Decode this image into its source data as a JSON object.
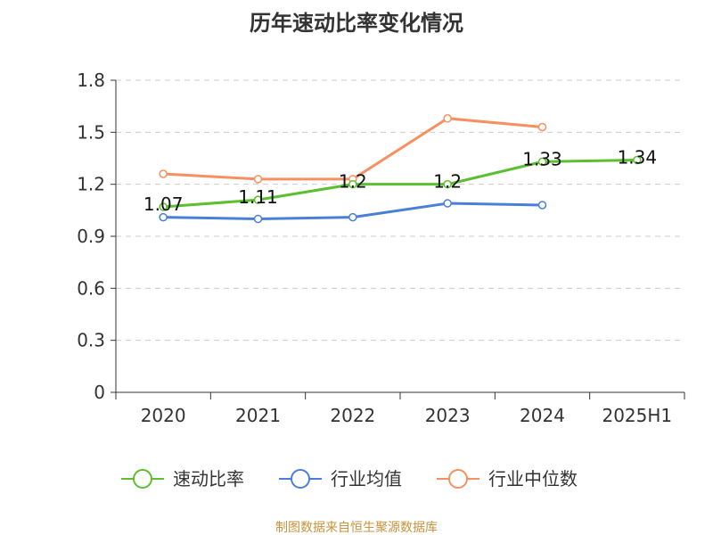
{
  "chart_data": {
    "type": "line",
    "title": "历年速动比率变化情况",
    "categories": [
      "2020",
      "2021",
      "2022",
      "2023",
      "2024",
      "2025H1"
    ],
    "ylim": [
      0,
      1.8
    ],
    "yticks": [
      "0",
      "0.3",
      "0.6",
      "0.9",
      "1.2",
      "1.5",
      "1.8"
    ],
    "grid": true,
    "legend_position": "bottom",
    "series": [
      {
        "name": "速动比率",
        "color": "#5cbf2f",
        "values": [
          1.07,
          1.11,
          1.2,
          1.2,
          1.33,
          1.34
        ],
        "labels": [
          "1.07",
          "1.11",
          "1.2",
          "1.2",
          "1.33",
          "1.34"
        ]
      },
      {
        "name": "行业均值",
        "color": "#4a7fd8",
        "values": [
          1.01,
          1.0,
          1.01,
          1.09,
          1.08,
          null
        ]
      },
      {
        "name": "行业中位数",
        "color": "#f79060",
        "values": [
          1.26,
          1.23,
          1.23,
          1.58,
          1.53,
          null
        ]
      }
    ]
  },
  "source_text": "制图数据来自恒生聚源数据库"
}
